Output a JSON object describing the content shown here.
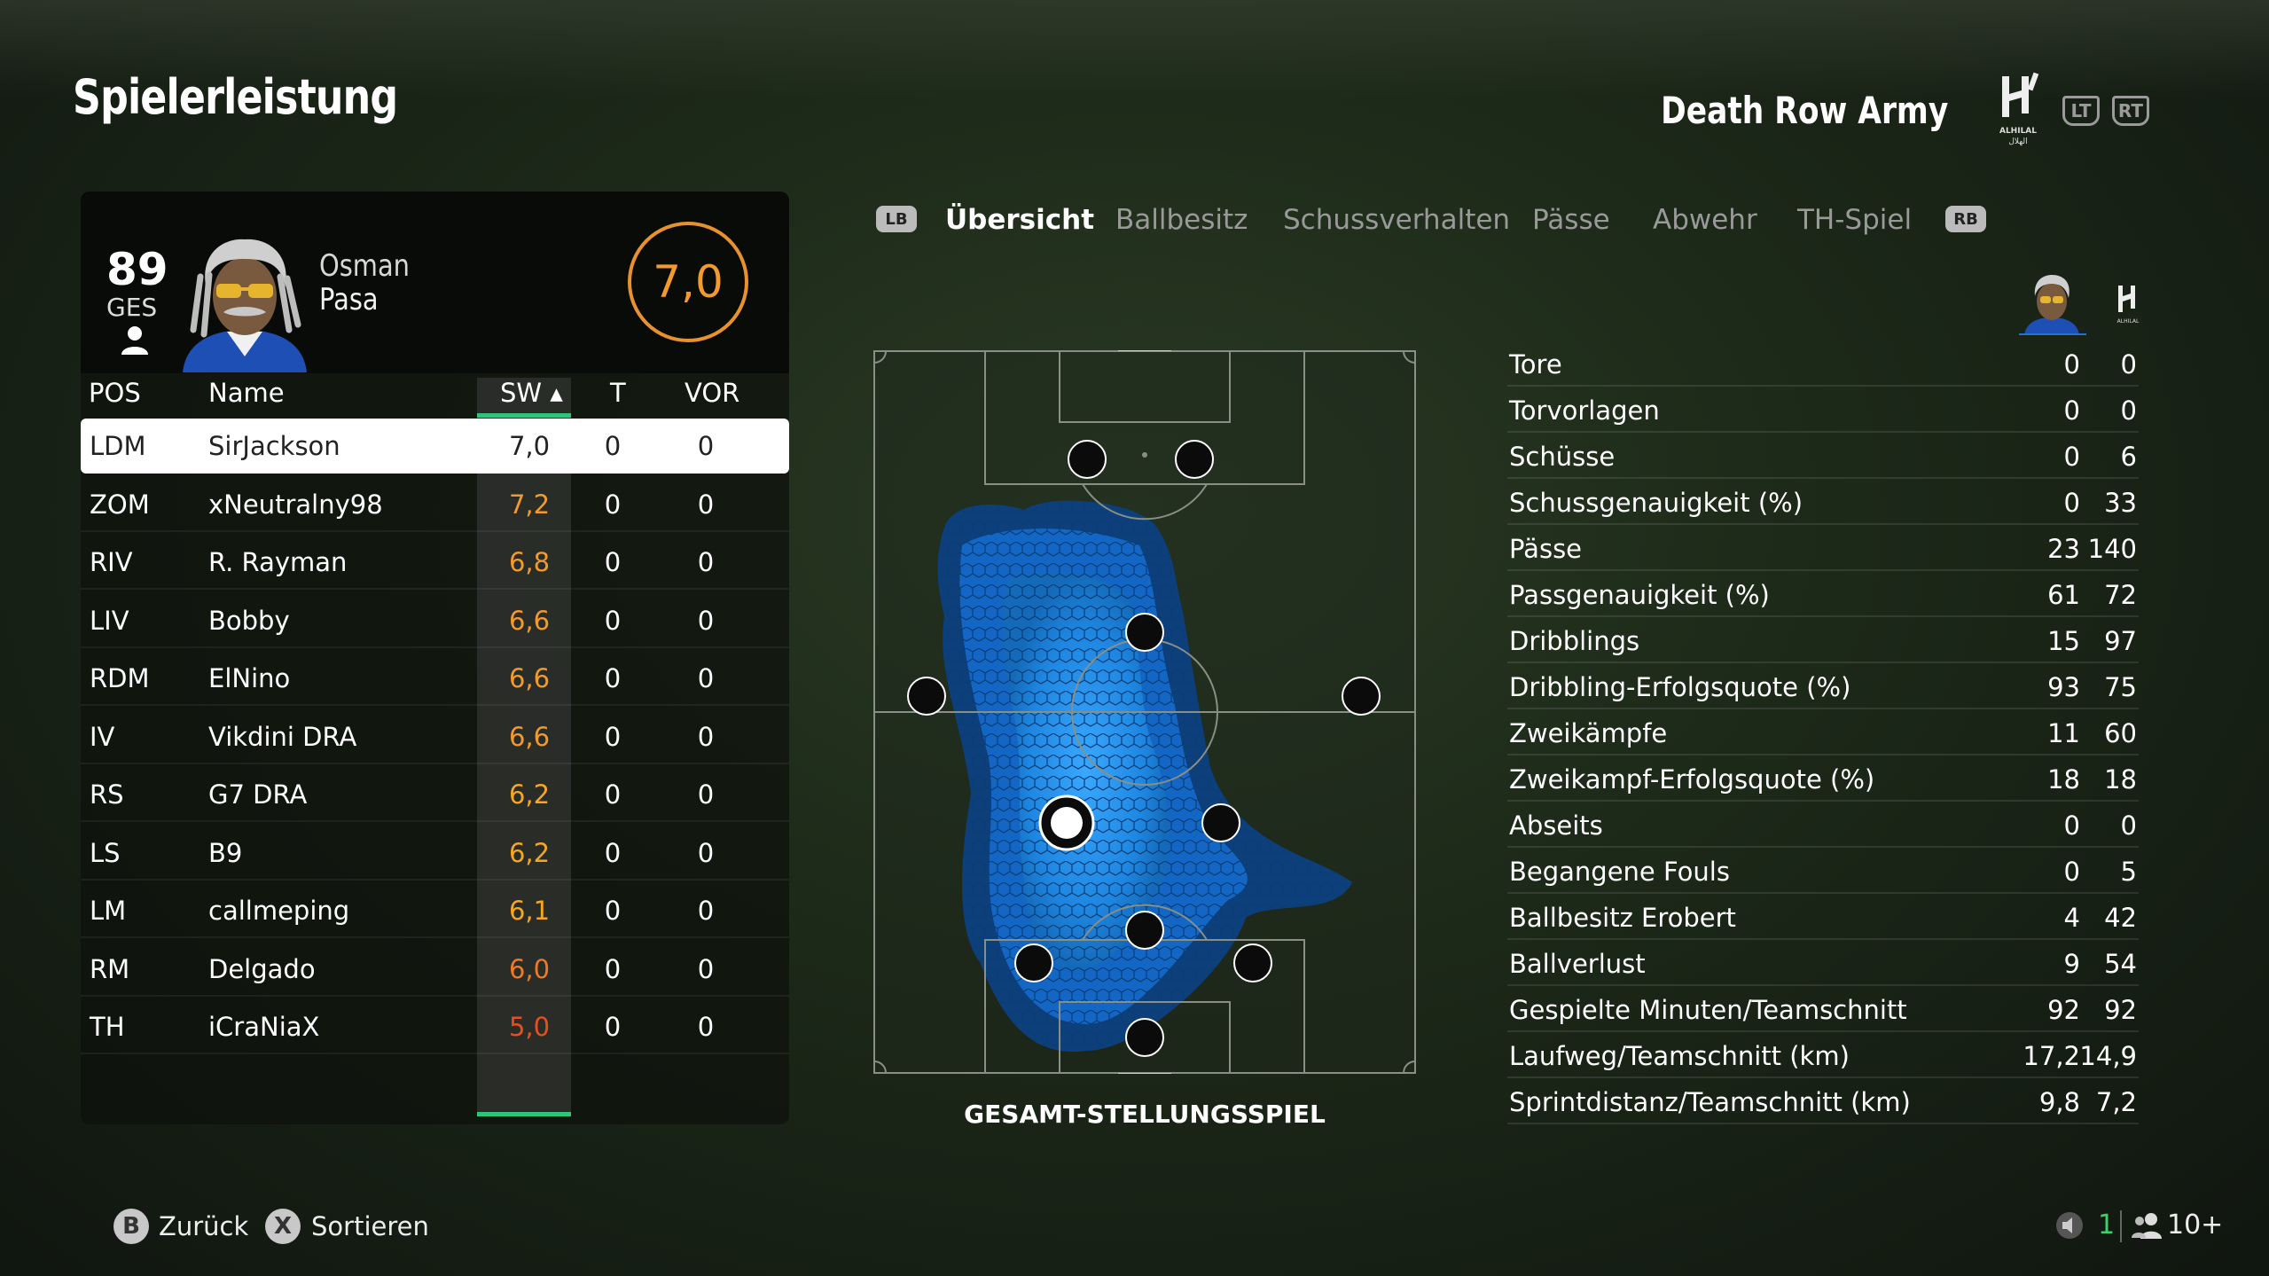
{
  "page_title": "Spielerleistung",
  "team": {
    "name": "Death Row Army",
    "logo_text": "ALHILAL",
    "triggers": [
      "LT",
      "RT"
    ]
  },
  "player": {
    "overall": "89",
    "overall_label": "GES",
    "first_name": "Osman",
    "last_name": "Pasa",
    "rating": "7,0",
    "rating_color": "#f29a2c"
  },
  "table": {
    "headers": {
      "pos": "POS",
      "name": "Name",
      "sw": "SW ▴",
      "t": "T",
      "vor": "VOR"
    },
    "rows": [
      {
        "pos": "LDM",
        "name": "SirJackson",
        "sw": "7,0",
        "t": "0",
        "vor": "0",
        "selected": true
      },
      {
        "pos": "ZOM",
        "name": "xNeutralny98",
        "sw": "7,2",
        "t": "0",
        "vor": "0"
      },
      {
        "pos": "RIV",
        "name": "R. Rayman",
        "sw": "6,8",
        "t": "0",
        "vor": "0"
      },
      {
        "pos": "LIV",
        "name": "Bobby",
        "sw": "6,6",
        "t": "0",
        "vor": "0"
      },
      {
        "pos": "RDM",
        "name": "ElNino",
        "sw": "6,6",
        "t": "0",
        "vor": "0"
      },
      {
        "pos": "IV",
        "name": "Vikdini DRA",
        "sw": "6,6",
        "t": "0",
        "vor": "0"
      },
      {
        "pos": "RS",
        "name": "G7 DRA",
        "sw": "6,2",
        "t": "0",
        "vor": "0"
      },
      {
        "pos": "LS",
        "name": "B9",
        "sw": "6,2",
        "t": "0",
        "vor": "0"
      },
      {
        "pos": "LM",
        "name": "callmeping",
        "sw": "6,1",
        "t": "0",
        "vor": "0"
      },
      {
        "pos": "RM",
        "name": "Delgado",
        "sw": "6,0",
        "t": "0",
        "vor": "0"
      },
      {
        "pos": "TH",
        "name": "iCraNiaX",
        "sw": "5,0",
        "t": "0",
        "vor": "0"
      }
    ]
  },
  "tabs": {
    "left_button": "LB",
    "right_button": "RB",
    "items": [
      "Übersicht",
      "Ballbesitz",
      "Schussverhalten",
      "Pässe",
      "Abwehr",
      "TH-Spiel"
    ],
    "active": "Übersicht"
  },
  "pitch": {
    "caption": "GESAMT-STELLUNGSSPIEL"
  },
  "stats": [
    {
      "label": "Tore",
      "player": "0",
      "team": "0"
    },
    {
      "label": "Torvorlagen",
      "player": "0",
      "team": "0"
    },
    {
      "label": "Schüsse",
      "player": "0",
      "team": "6"
    },
    {
      "label": "Schussgenauigkeit (%)",
      "player": "0",
      "team": "33"
    },
    {
      "label": "Pässe",
      "player": "23",
      "team": "140"
    },
    {
      "label": "Passgenauigkeit (%)",
      "player": "61",
      "team": "72"
    },
    {
      "label": "Dribblings",
      "player": "15",
      "team": "97"
    },
    {
      "label": "Dribbling-Erfolgsquote (%)",
      "player": "93",
      "team": "75"
    },
    {
      "label": "Zweikämpfe",
      "player": "11",
      "team": "60"
    },
    {
      "label": "Zweikampf-Erfolgsquote (%)",
      "player": "18",
      "team": "18"
    },
    {
      "label": "Abseits",
      "player": "0",
      "team": "0"
    },
    {
      "label": "Begangene Fouls",
      "player": "0",
      "team": "5"
    },
    {
      "label": "Ballbesitz Erobert",
      "player": "4",
      "team": "42"
    },
    {
      "label": "Ballverlust",
      "player": "9",
      "team": "54"
    },
    {
      "label": "Gespielte Minuten/Teamschnitt",
      "player": "92",
      "team": "92"
    },
    {
      "label": "Laufweg/Teamschnitt (km)",
      "player": "17,2",
      "team": "14,9"
    },
    {
      "label": "Sprintdistanz/Teamschnitt (km)",
      "player": "9,8",
      "team": "7,2"
    }
  ],
  "footer": {
    "back": {
      "button": "B",
      "label": "Zurück"
    },
    "sort": {
      "button": "X",
      "label": "Sortieren"
    },
    "players_count": "1",
    "spectators": "10+"
  },
  "colors": {
    "rating_good": "#f29a2c",
    "rating_mid": "#f5a623",
    "rating_low": "#e6501e",
    "heatmap": "#1e9bff",
    "accent_green": "#2ec47a"
  }
}
